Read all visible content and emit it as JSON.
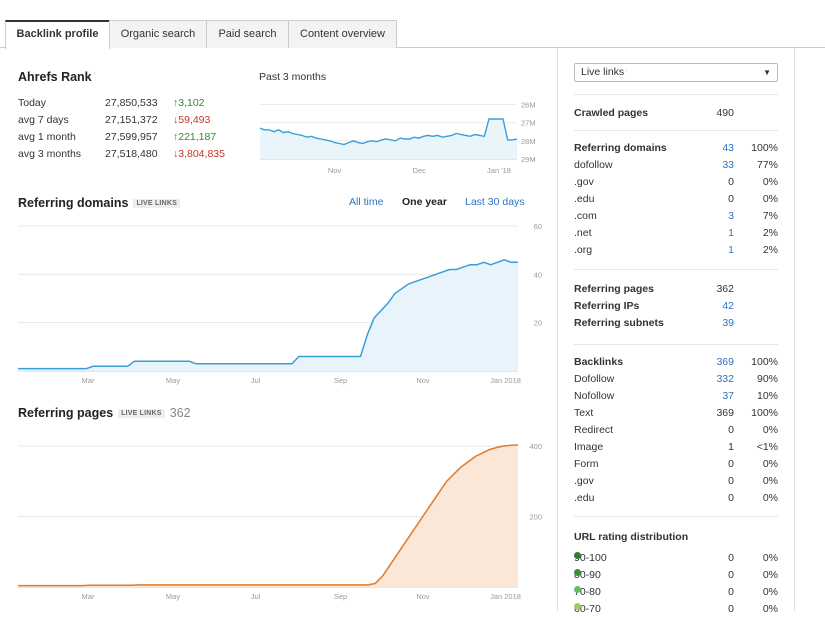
{
  "tabs": [
    {
      "label": "Backlink profile"
    },
    {
      "label": "Organic search"
    },
    {
      "label": "Paid search"
    },
    {
      "label": "Content overview"
    }
  ],
  "ahrefs_rank": {
    "title": "Ahrefs Rank",
    "period": "Past 3 months",
    "rows": [
      {
        "label": "Today",
        "value": "27,850,533",
        "change": "3,102",
        "direction": "up"
      },
      {
        "label": "avg 7 days",
        "value": "27,151,372",
        "change": "59,493",
        "direction": "down"
      },
      {
        "label": "avg 1 month",
        "value": "27,599,957",
        "change": "221,187",
        "direction": "up"
      },
      {
        "label": "avg 3 months",
        "value": "27,518,480",
        "change": "3,804,835",
        "direction": "down"
      }
    ]
  },
  "referring_domains_section": {
    "title": "Referring domains",
    "badge": "LIVE LINKS",
    "filters": [
      "All time",
      "One year",
      "Last 30 days"
    ],
    "active_filter": "One year"
  },
  "referring_pages_section": {
    "title": "Referring pages",
    "badge": "LIVE LINKS",
    "count": "362"
  },
  "chart_data": [
    {
      "type": "line",
      "title": "Ahrefs Rank - Past 3 months",
      "x_ticks": [
        "Nov",
        "Dec",
        "Jan '18"
      ],
      "y_ticks": [
        "26M",
        "27M",
        "28M",
        "29M"
      ],
      "ylim": [
        29.0,
        25.7
      ],
      "y_reversed": true,
      "color": "#3a9fd6",
      "values": [
        27.3,
        27.4,
        27.4,
        27.5,
        27.4,
        27.55,
        27.5,
        27.6,
        27.65,
        27.7,
        27.8,
        27.75,
        27.85,
        27.9,
        27.95,
        28.0,
        28.1,
        28.15,
        28.2,
        28.1,
        28.0,
        28.1,
        28.15,
        28.05,
        28.0,
        28.05,
        27.95,
        27.9,
        27.95,
        28.0,
        27.85,
        27.9,
        27.9,
        27.8,
        27.85,
        27.75,
        27.7,
        27.75,
        27.7,
        27.8,
        27.75,
        27.7,
        27.6,
        27.65,
        27.7,
        27.75,
        27.65,
        27.7,
        27.75,
        26.8,
        26.8,
        26.8,
        26.8,
        27.95,
        27.95,
        27.9
      ]
    },
    {
      "type": "area",
      "title": "Referring domains",
      "x_ticks": [
        "Mar",
        "May",
        "Jul",
        "Sep",
        "Nov",
        "Jan 2018"
      ],
      "y_ticks": [
        "20",
        "40",
        "60"
      ],
      "ylim": [
        0,
        60
      ],
      "color": "#3a9fd6",
      "fill": "#e8f3fb",
      "values": [
        1,
        1,
        1,
        1,
        1,
        1,
        1,
        1,
        1,
        1,
        1,
        2,
        2,
        2,
        2,
        2,
        2,
        4,
        4,
        4,
        4,
        4,
        4,
        4,
        4,
        4,
        3,
        3,
        3,
        3,
        3,
        3,
        3,
        3,
        3,
        3,
        3,
        3,
        3,
        3,
        3,
        6,
        6,
        6,
        6,
        6,
        6,
        6,
        6,
        6,
        6,
        15,
        22,
        25,
        28,
        32,
        34,
        36,
        37,
        38,
        39,
        40,
        41,
        42,
        42,
        43,
        44,
        44,
        45,
        44,
        45,
        46,
        45,
        45
      ]
    },
    {
      "type": "area",
      "title": "Referring pages",
      "x_ticks": [
        "Mar",
        "May",
        "Jul",
        "Sep",
        "Nov",
        "Jan 2018"
      ],
      "y_ticks": [
        "200",
        "400"
      ],
      "ylim": [
        0,
        420
      ],
      "color": "#e07b2b",
      "fill": "#fbe7d7",
      "values": [
        4,
        4,
        4,
        4,
        4,
        4,
        4,
        4,
        4,
        4,
        5,
        5,
        5,
        5,
        5,
        5,
        5,
        6,
        6,
        6,
        6,
        6,
        6,
        6,
        6,
        6,
        6,
        6,
        6,
        6,
        6,
        6,
        6,
        6,
        6,
        6,
        6,
        6,
        6,
        6,
        6,
        6,
        6,
        6,
        6,
        6,
        6,
        6,
        6,
        6,
        10,
        30,
        60,
        90,
        120,
        150,
        180,
        210,
        240,
        270,
        300,
        320,
        340,
        355,
        370,
        380,
        390,
        396,
        400,
        402,
        403
      ]
    }
  ],
  "sidebar": {
    "select_value": "Live links",
    "crawled_pages": {
      "label": "Crawled pages",
      "value": "490"
    },
    "referring_domains": [
      {
        "label": "Referring domains",
        "value": "43",
        "pct": "100%",
        "bold": true,
        "link": true
      },
      {
        "label": "dofollow",
        "value": "33",
        "pct": "77%",
        "link": true
      },
      {
        "label": ".gov",
        "value": "0",
        "pct": "0%"
      },
      {
        "label": ".edu",
        "value": "0",
        "pct": "0%"
      },
      {
        "label": ".com",
        "value": "3",
        "pct": "7%",
        "link": true
      },
      {
        "label": ".net",
        "value": "1",
        "pct": "2%",
        "link": true
      },
      {
        "label": ".org",
        "value": "1",
        "pct": "2%",
        "link": true
      }
    ],
    "referring_misc": [
      {
        "label": "Referring pages",
        "value": "362",
        "bold": true
      },
      {
        "label": "Referring IPs",
        "value": "42",
        "bold": true,
        "link": true
      },
      {
        "label": "Referring subnets",
        "value": "39",
        "bold": true,
        "link": true
      }
    ],
    "backlinks": [
      {
        "label": "Backlinks",
        "value": "369",
        "pct": "100%",
        "bold": true,
        "link": true
      },
      {
        "label": "Dofollow",
        "value": "332",
        "pct": "90%",
        "link": true
      },
      {
        "label": "Nofollow",
        "value": "37",
        "pct": "10%",
        "link": true
      },
      {
        "label": "Text",
        "value": "369",
        "pct": "100%"
      },
      {
        "label": "Redirect",
        "value": "0",
        "pct": "0%"
      },
      {
        "label": "Image",
        "value": "1",
        "pct": "<1%"
      },
      {
        "label": "Form",
        "value": "0",
        "pct": "0%"
      },
      {
        "label": ".gov",
        "value": "0",
        "pct": "0%"
      },
      {
        "label": ".edu",
        "value": "0",
        "pct": "0%"
      }
    ],
    "url_rating": {
      "title": "URL rating distribution",
      "rows": [
        {
          "label": "90-100",
          "value": "0",
          "pct": "0%",
          "color": "#2e7d32"
        },
        {
          "label": "80-90",
          "value": "0",
          "pct": "0%",
          "color": "#388e3c"
        },
        {
          "label": "70-80",
          "value": "0",
          "pct": "0%",
          "color": "#66bb6a"
        },
        {
          "label": "60-70",
          "value": "0",
          "pct": "0%",
          "color": "#9ccc65"
        }
      ]
    }
  }
}
